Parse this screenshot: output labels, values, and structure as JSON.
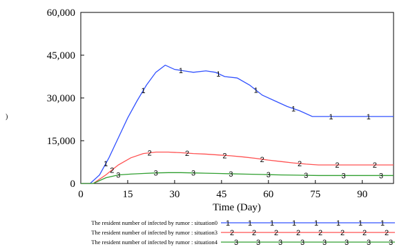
{
  "chart_data": {
    "type": "line",
    "title": "",
    "xlabel": "Time (Day)",
    "ylabel": "",
    "xlim": [
      0,
      100
    ],
    "ylim": [
      0,
      60000
    ],
    "x_ticks": [
      0,
      15,
      30,
      45,
      60,
      75,
      90
    ],
    "x_tick_labels": [
      "0",
      "15",
      "30",
      "45",
      "60",
      "75",
      "90"
    ],
    "y_ticks": [
      0,
      15000,
      30000,
      45000,
      60000
    ],
    "y_tick_labels": [
      "0",
      "15,000",
      "30,000",
      "45,000",
      "60,000"
    ],
    "grid": false,
    "legend_position": "bottom",
    "series": [
      {
        "name": "The resident number of infected by rumor : situation0",
        "marker": "1",
        "color": "#3050ff",
        "x": [
          0,
          3,
          6,
          9,
          12,
          15,
          18,
          21,
          24,
          27,
          28,
          30,
          33,
          36,
          40,
          43,
          46,
          50,
          54,
          58,
          62,
          66,
          70,
          74,
          78,
          85,
          92,
          100
        ],
        "y": [
          0,
          0,
          3000,
          9000,
          16000,
          23000,
          29000,
          34500,
          39000,
          41500,
          41000,
          40000,
          39500,
          39000,
          39500,
          39000,
          37500,
          37000,
          34500,
          31000,
          29000,
          27000,
          25500,
          23500,
          23500,
          23500,
          23500,
          23500
        ]
      },
      {
        "name": "The resident number of infected by rumor : situation3",
        "marker": "2",
        "color": "#ff5050",
        "x": [
          0,
          4,
          8,
          12,
          16,
          20,
          24,
          28,
          32,
          36,
          40,
          44,
          48,
          52,
          56,
          60,
          64,
          68,
          72,
          76,
          80,
          90,
          100
        ],
        "y": [
          0,
          0,
          3000,
          6500,
          9000,
          10500,
          11000,
          11000,
          10800,
          10500,
          10300,
          10000,
          9700,
          9300,
          8800,
          8200,
          7700,
          7200,
          6800,
          6500,
          6500,
          6500,
          6500
        ]
      },
      {
        "name": "The resident number of infected by rumor : situation4",
        "marker": "3",
        "color": "#2e9e2e",
        "x": [
          0,
          4,
          8,
          12,
          16,
          20,
          24,
          28,
          32,
          36,
          40,
          44,
          48,
          52,
          56,
          60,
          64,
          70,
          76,
          82,
          90,
          100
        ],
        "y": [
          0,
          0,
          2000,
          3000,
          3300,
          3500,
          3700,
          3800,
          3800,
          3700,
          3600,
          3500,
          3400,
          3300,
          3200,
          3100,
          3000,
          2900,
          2800,
          2800,
          2800,
          2800
        ]
      }
    ]
  },
  "side_mark": ")"
}
